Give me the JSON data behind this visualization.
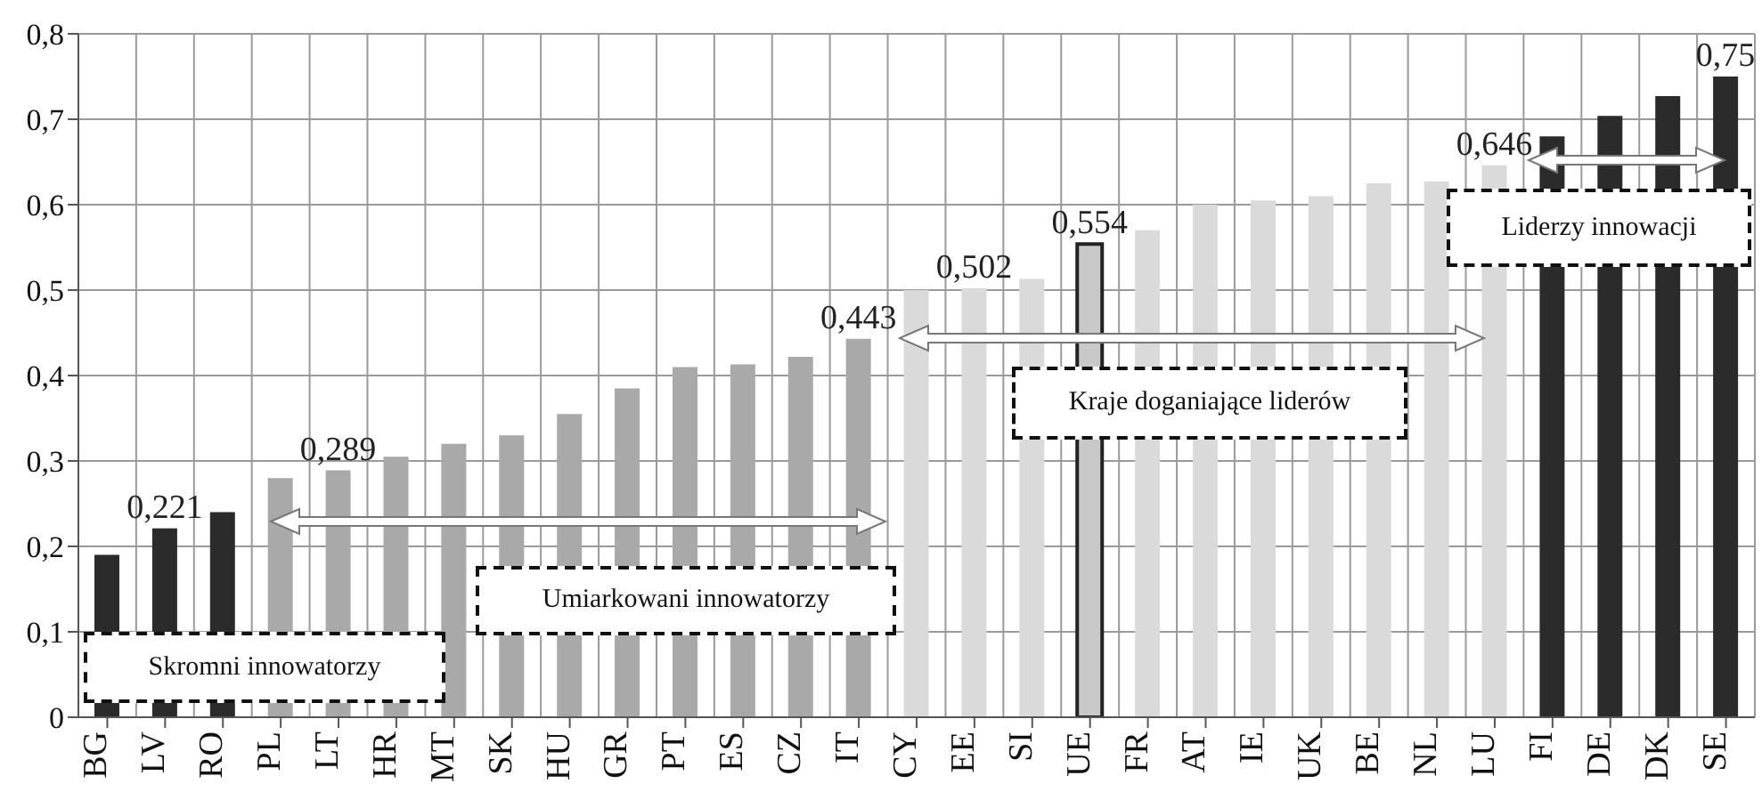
{
  "chart_data": {
    "type": "bar",
    "categories": [
      "BG",
      "LV",
      "RO",
      "PL",
      "LT",
      "HR",
      "MT",
      "SK",
      "HU",
      "GR",
      "PT",
      "ES",
      "CZ",
      "IT",
      "CY",
      "EE",
      "SI",
      "UE",
      "FR",
      "AT",
      "IE",
      "UK",
      "BE",
      "NL",
      "LU",
      "FI",
      "DE",
      "DK",
      "SE"
    ],
    "values": [
      0.19,
      0.221,
      0.24,
      0.28,
      0.289,
      0.305,
      0.32,
      0.33,
      0.355,
      0.385,
      0.41,
      0.413,
      0.422,
      0.443,
      0.5,
      0.502,
      0.513,
      0.554,
      0.57,
      0.6,
      0.605,
      0.61,
      0.625,
      0.627,
      0.646,
      0.68,
      0.704,
      0.727,
      0.75
    ],
    "value_labels": [
      null,
      "0,221",
      null,
      null,
      "0,289",
      null,
      null,
      null,
      null,
      null,
      null,
      null,
      null,
      "0,443",
      null,
      "0,502",
      null,
      "0,554",
      null,
      null,
      null,
      null,
      null,
      null,
      "0,646",
      null,
      null,
      null,
      "0,75"
    ],
    "colors": [
      "#2b2b2b",
      "#2b2b2b",
      "#2b2b2b",
      "#a9a9a9",
      "#a9a9a9",
      "#a9a9a9",
      "#a9a9a9",
      "#a9a9a9",
      "#a9a9a9",
      "#a9a9a9",
      "#a9a9a9",
      "#a9a9a9",
      "#a9a9a9",
      "#a9a9a9",
      "#dadada",
      "#dadada",
      "#dadada",
      "#c8c8c8",
      "#dadada",
      "#dadada",
      "#dadada",
      "#dadada",
      "#dadada",
      "#dadada",
      "#dadada",
      "#2b2b2b",
      "#2b2b2b",
      "#2b2b2b",
      "#2b2b2b"
    ],
    "ylim": [
      0,
      0.8
    ],
    "yticks": [
      {
        "value": 0,
        "label": "0"
      },
      {
        "value": 0.1,
        "label": "0,1"
      },
      {
        "value": 0.2,
        "label": "0,2"
      },
      {
        "value": 0.3,
        "label": "0,3"
      },
      {
        "value": 0.4,
        "label": "0,4"
      },
      {
        "value": 0.5,
        "label": "0,5"
      },
      {
        "value": 0.6,
        "label": "0,6"
      },
      {
        "value": 0.7,
        "label": "0,7"
      },
      {
        "value": 0.8,
        "label": "0,8"
      }
    ],
    "annotations": [
      "Skromni innowatorzy",
      "Umiarkowani innowatorzy",
      "Kraje doganiające liderów",
      "Liderzy innowacji"
    ],
    "grid": true
  }
}
